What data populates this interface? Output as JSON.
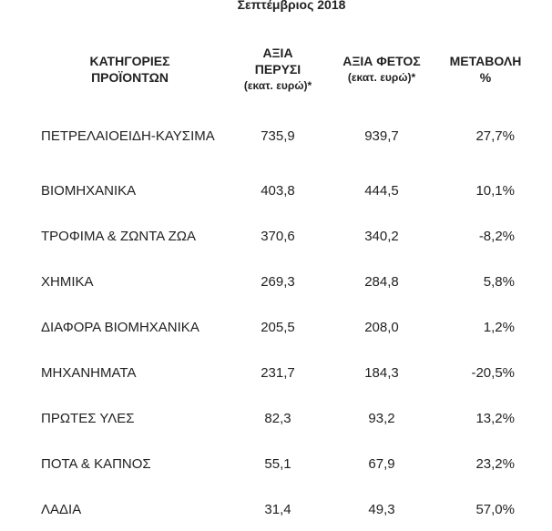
{
  "title": "Σεπτέμβριος 2018",
  "table": {
    "headers": [
      [
        "ΚΑΤΗΓΟΡΙΕΣ",
        "ΠΡΟΪΟΝΤΩΝ"
      ],
      [
        "ΑΞΙΑ",
        "ΠΕΡΥΣΙ",
        "(εκατ. ευρώ)*"
      ],
      [
        "ΑΞΙΑ ΦΕΤΟΣ",
        "(εκατ. ευρώ)*"
      ],
      [
        "ΜΕΤΑΒΟΛΗ",
        "%"
      ]
    ],
    "rows": [
      [
        "ΠΕΤΡΕΛΑΙΟΕΙΔΗ-ΚΑΥΣΙΜΑ",
        "735,9",
        "939,7",
        "27,7%"
      ],
      [
        "ΒΙΟΜΗΧΑΝΙΚΑ",
        "403,8",
        "444,5",
        "10,1%"
      ],
      [
        "ΤΡΟΦΙΜΑ & ΖΩΝΤΑ ΖΩΑ",
        "370,6",
        "340,2",
        "-8,2%"
      ],
      [
        "ΧΗΜΙΚΑ",
        "269,3",
        "284,8",
        "5,8%"
      ],
      [
        "ΔΙΑΦΟΡΑ ΒΙΟΜΗΧΑΝΙΚΑ",
        "205,5",
        "208,0",
        "1,2%"
      ],
      [
        "ΜΗΧΑΝΗΜΑΤΑ",
        "231,7",
        "184,3",
        "-20,5%"
      ],
      [
        "ΠΡΩΤΕΣ ΥΛΕΣ",
        "82,3",
        "93,2",
        "13,2%"
      ],
      [
        "ΠΟΤΑ & ΚΑΠΝΟΣ",
        "55,1",
        "67,9",
        "23,2%"
      ],
      [
        "ΛΑΔΙΑ",
        "31,4",
        "49,3",
        "57,0%"
      ]
    ]
  }
}
